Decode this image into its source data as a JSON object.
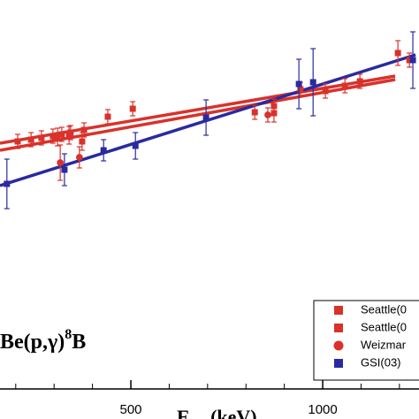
{
  "chart_data": {
    "type": "scatter",
    "x_label": [
      "E",
      "cm",
      " (keV)"
    ],
    "annotation": [
      "Be(p,γ)",
      "8",
      "B"
    ],
    "xlim": [
      159,
      1251
    ],
    "ylim": [
      0,
      474
    ],
    "xticks": [
      500,
      1000
    ],
    "xminorticks": [
      200,
      300,
      400,
      600,
      700,
      800,
      900,
      1100,
      1200
    ],
    "legend": "lower right",
    "series": [
      {
        "name": "Seattle(0",
        "color": "#d8322b",
        "marker": "square",
        "x": [
          205,
          240,
          267,
          297,
          320,
          343,
          378,
          440,
          505,
          823,
          873,
          942,
          1007,
          1058,
          1097,
          1226
        ],
        "values": [
          314,
          316,
          318,
          320,
          322,
          324,
          327,
          342,
          351,
          347,
          354,
          373,
          371,
          377,
          382,
          406
        ],
        "errors": [
          8,
          8,
          8,
          8,
          8,
          8,
          8,
          8,
          8,
          8,
          8,
          8,
          8,
          8,
          8,
          8
        ]
      },
      {
        "name": "Seattle(0",
        "color": "#d8322b",
        "marker": "square",
        "x": [
          309,
          339,
          373,
          873,
          1196
        ],
        "values": [
          319,
          321,
          314,
          346,
          414
        ],
        "errors": [
          10,
          10,
          10,
          10,
          14
        ]
      },
      {
        "name": "Weizmar",
        "color": "#d8322b",
        "marker": "circle",
        "x": [
          316,
          366,
          857
        ],
        "values": [
          290,
          296,
          344
        ],
        "errors": [
          20,
          12,
          8
        ]
      },
      {
        "name": "GSI(03)",
        "color": "#2a2aa0",
        "marker": "square",
        "x": [
          177,
          327,
          429,
          512,
          696,
          938,
          975,
          1235
        ],
        "values": [
          266,
          282,
          304,
          309,
          341,
          379,
          381,
          406
        ],
        "errors": [
          28,
          18,
          12,
          15,
          20,
          28,
          38,
          32
        ]
      }
    ],
    "fits": [
      {
        "color": "#d8322b",
        "x": [
          159,
          1189
        ],
        "values": [
          312,
          388
        ]
      },
      {
        "color": "#d8322b",
        "x": [
          159,
          1189
        ],
        "values": [
          304,
          384
        ]
      },
      {
        "color": "#2a2aa0",
        "x": [
          159,
          1242
        ],
        "values": [
          264,
          412
        ]
      }
    ]
  }
}
